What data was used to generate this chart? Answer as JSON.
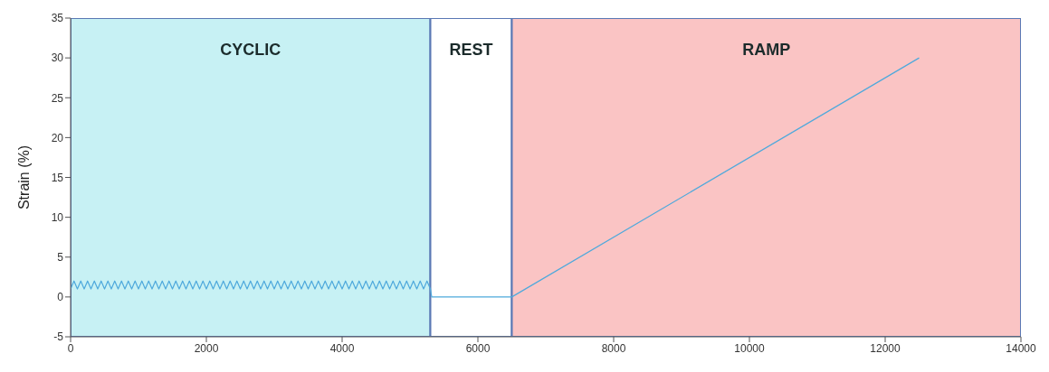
{
  "chart_data": {
    "type": "line",
    "ylabel": "Strain (%)",
    "xlim": [
      0,
      14000
    ],
    "xticks": [
      0,
      2000,
      4000,
      6000,
      8000,
      10000,
      12000,
      14000
    ],
    "ylim": [
      -5,
      35
    ],
    "yticks": [
      -5,
      0,
      5,
      10,
      15,
      20,
      25,
      30,
      35
    ],
    "grid": false,
    "legend": false,
    "marker": "none",
    "line_style": "solid",
    "bands": [
      {
        "axis": "x",
        "from": 0,
        "to": 5300,
        "label": "CYCLIC",
        "color": "#c7f1f4"
      },
      {
        "axis": "x",
        "from": 5300,
        "to": 6500,
        "label": "REST",
        "color": "#ffffff"
      },
      {
        "axis": "x",
        "from": 6500,
        "to": 14000,
        "label": "RAMP",
        "color": "#fac4c4"
      }
    ],
    "series": [
      {
        "color": "#4ea9dc",
        "x": [
          0,
          50,
          100,
          150,
          200,
          250,
          300,
          350,
          400,
          450,
          500,
          550,
          600,
          650,
          700,
          750,
          800,
          850,
          900,
          950,
          1000,
          1050,
          1100,
          1150,
          1200,
          1250,
          1300,
          1350,
          1400,
          1450,
          1500,
          1550,
          1600,
          1650,
          1700,
          1750,
          1800,
          1850,
          1900,
          1950,
          2000,
          2050,
          2100,
          2150,
          2200,
          2250,
          2300,
          2350,
          2400,
          2450,
          2500,
          2550,
          2600,
          2650,
          2700,
          2750,
          2800,
          2850,
          2900,
          2950,
          3000,
          3050,
          3100,
          3150,
          3200,
          3250,
          3300,
          3350,
          3400,
          3450,
          3500,
          3550,
          3600,
          3650,
          3700,
          3750,
          3800,
          3850,
          3900,
          3950,
          4000,
          4050,
          4100,
          4150,
          4200,
          4250,
          4300,
          4350,
          4400,
          4450,
          4500,
          4550,
          4600,
          4650,
          4700,
          4750,
          4800,
          4850,
          4900,
          4950,
          5000,
          5050,
          5100,
          5150,
          5200,
          5250,
          5300,
          5320,
          6500,
          12500
        ],
        "values": [
          1,
          2,
          1,
          2,
          1,
          2,
          1,
          2,
          1,
          2,
          1,
          2,
          1,
          2,
          1,
          2,
          1,
          2,
          1,
          2,
          1,
          2,
          1,
          2,
          1,
          2,
          1,
          2,
          1,
          2,
          1,
          2,
          1,
          2,
          1,
          2,
          1,
          2,
          1,
          2,
          1,
          2,
          1,
          2,
          1,
          2,
          1,
          2,
          1,
          2,
          1,
          2,
          1,
          2,
          1,
          2,
          1,
          2,
          1,
          2,
          1,
          2,
          1,
          2,
          1,
          2,
          1,
          2,
          1,
          2,
          1,
          2,
          1,
          2,
          1,
          2,
          1,
          2,
          1,
          2,
          1,
          2,
          1,
          2,
          1,
          2,
          1,
          2,
          1,
          2,
          1,
          2,
          1,
          2,
          1,
          2,
          1,
          2,
          1,
          2,
          1,
          2,
          1,
          2,
          1,
          2,
          1,
          0,
          0,
          30
        ]
      }
    ]
  }
}
